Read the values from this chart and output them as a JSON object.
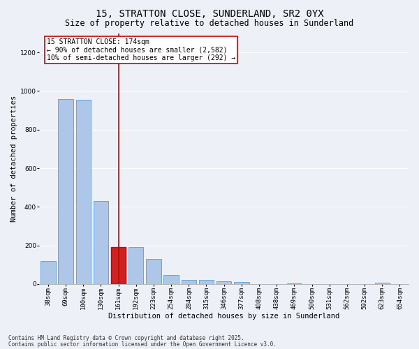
{
  "title1": "15, STRATTON CLOSE, SUNDERLAND, SR2 0YX",
  "title2": "Size of property relative to detached houses in Sunderland",
  "xlabel": "Distribution of detached houses by size in Sunderland",
  "ylabel": "Number of detached properties",
  "categories": [
    "38sqm",
    "69sqm",
    "100sqm",
    "130sqm",
    "161sqm",
    "192sqm",
    "223sqm",
    "254sqm",
    "284sqm",
    "315sqm",
    "346sqm",
    "377sqm",
    "408sqm",
    "438sqm",
    "469sqm",
    "500sqm",
    "531sqm",
    "562sqm",
    "592sqm",
    "623sqm",
    "654sqm"
  ],
  "values": [
    120,
    960,
    955,
    430,
    190,
    190,
    130,
    45,
    20,
    20,
    15,
    10,
    0,
    0,
    5,
    0,
    0,
    0,
    0,
    8,
    0
  ],
  "bar_color": "#aec6e8",
  "bar_edge_color": "#5b9bd5",
  "highlight_bar_index": 4,
  "highlight_bar_color": "#cc2222",
  "highlight_bar_edge_color": "#cc0000",
  "vline_color": "#cc0000",
  "annotation_title": "15 STRATTON CLOSE: 174sqm",
  "annotation_line1": "← 90% of detached houses are smaller (2,582)",
  "annotation_line2": "10% of semi-detached houses are larger (292) →",
  "annotation_box_color": "#ffffff",
  "annotation_border_color": "#cc0000",
  "background_color": "#eef0f8",
  "grid_color": "#ffffff",
  "ylim": [
    0,
    1300
  ],
  "yticks": [
    0,
    200,
    400,
    600,
    800,
    1000,
    1200
  ],
  "footer1": "Contains HM Land Registry data © Crown copyright and database right 2025.",
  "footer2": "Contains public sector information licensed under the Open Government Licence v3.0.",
  "title_fontsize": 10,
  "subtitle_fontsize": 8.5,
  "axis_label_fontsize": 7.5,
  "tick_fontsize": 6.5,
  "annotation_fontsize": 7,
  "footer_fontsize": 5.5
}
